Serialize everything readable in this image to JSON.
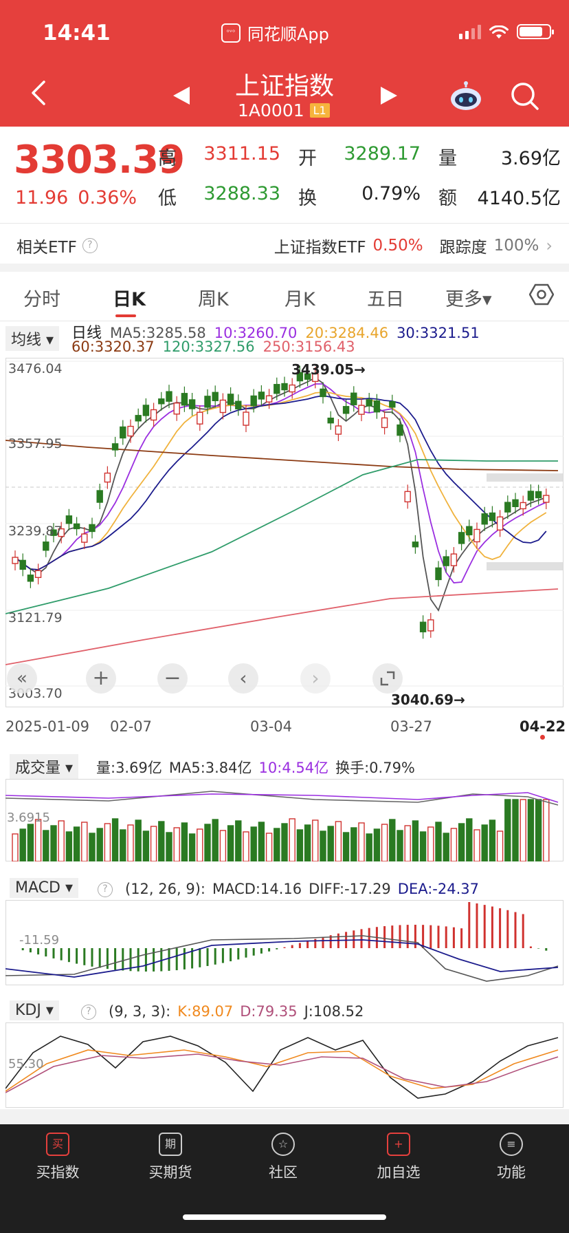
{
  "status_bar": {
    "time": "14:41",
    "app_name": "同花顺App",
    "app_logo_text": "ᵒᵛᵒ"
  },
  "header": {
    "title": "上证指数",
    "code": "1A0001",
    "level_badge": "L1"
  },
  "quote": {
    "price": "3303.39",
    "change": "11.96",
    "change_pct": "0.36%",
    "high_label": "高",
    "high": "3311.15",
    "open_label": "开",
    "open": "3289.17",
    "volume_label": "量",
    "volume": "3.69亿",
    "low_label": "低",
    "low": "3288.33",
    "turnover_label": "换",
    "turnover": "0.79%",
    "amount_label": "额",
    "amount": "4140.5亿"
  },
  "etf": {
    "label": "相关ETF",
    "etf_name": "上证指数ETF",
    "etf_change": "0.50%",
    "tracking_label": "跟踪度",
    "tracking_value": "100%"
  },
  "tabs": [
    {
      "label": "分时",
      "active": false
    },
    {
      "label": "日K",
      "active": true
    },
    {
      "label": "周K",
      "active": false
    },
    {
      "label": "月K",
      "active": false
    },
    {
      "label": "五日",
      "active": false
    },
    {
      "label": "更多▾",
      "active": false
    }
  ],
  "ma_bar": {
    "selector": "均线 ▾",
    "type_label": "日线",
    "ma5": "MA5:3285.58",
    "ma10": "10:3260.70",
    "ma20": "20:3284.46",
    "ma30": "30:3321.51",
    "ma60": "60:3320.37",
    "ma120": "120:3327.56",
    "ma250": "250:3156.43"
  },
  "kline": {
    "y_labels": [
      "3476.04",
      "3357.95",
      "3239.87",
      "3121.79",
      "3003.70"
    ],
    "x_labels": [
      "2025-01-09",
      "02-07",
      "03-04",
      "03-27",
      "04-22"
    ],
    "high_marker": "3439.05→",
    "low_marker": "3040.69→",
    "colors": {
      "up": "#d0322f",
      "down": "#2a7a22",
      "ma5": "#555555",
      "ma10": "#9a2ee0",
      "ma20": "#f0b23c",
      "ma30": "#1b1b8c",
      "ma60": "#8b3a12",
      "ma120": "#2f9c6a",
      "ma250": "#e0606a"
    }
  },
  "volume": {
    "selector": "成交量 ▾",
    "vol": "量:3.69亿",
    "ma5": "MA5:3.84亿",
    "ma10": "10:4.54亿",
    "turnover": "换手:0.79%",
    "y_label": "3.6915"
  },
  "macd": {
    "selector": "MACD ▾",
    "params": "(12, 26, 9):",
    "macd": "MACD:14.16",
    "diff": "DIFF:-17.29",
    "dea": "DEA:-24.37",
    "y_label": "-11.59"
  },
  "kdj": {
    "selector": "KDJ ▾",
    "params": "(9, 3, 3):",
    "k": "K:89.07",
    "d": "D:79.35",
    "j": "J:108.52",
    "y_label": "55.30"
  },
  "bottom_nav": [
    {
      "label": "买指数",
      "icon": "buy-icon",
      "glyph": "买"
    },
    {
      "label": "买期货",
      "icon": "futures-icon",
      "glyph": "期"
    },
    {
      "label": "社区",
      "icon": "community-icon",
      "glyph": "☆"
    },
    {
      "label": "加自选",
      "icon": "add-watchlist-icon",
      "glyph": "+"
    },
    {
      "label": "功能",
      "icon": "menu-icon",
      "glyph": "≡"
    }
  ]
}
